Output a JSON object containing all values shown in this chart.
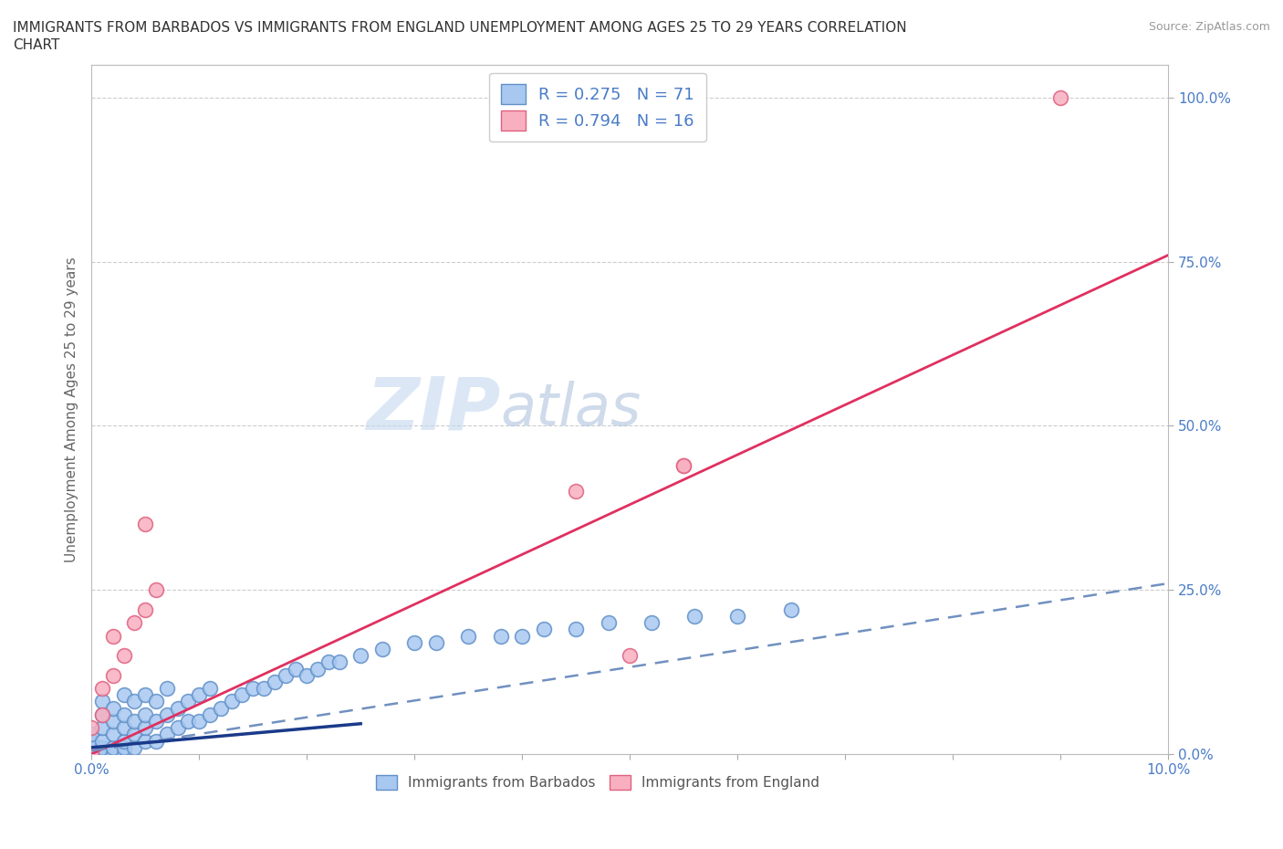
{
  "title_line1": "IMMIGRANTS FROM BARBADOS VS IMMIGRANTS FROM ENGLAND UNEMPLOYMENT AMONG AGES 25 TO 29 YEARS CORRELATION",
  "title_line2": "CHART",
  "source_text": "Source: ZipAtlas.com",
  "ylabel": "Unemployment Among Ages 25 to 29 years",
  "x_min": 0.0,
  "x_max": 0.1,
  "y_min": 0.0,
  "y_max": 1.05,
  "y_ticks": [
    0.0,
    0.25,
    0.5,
    0.75,
    1.0
  ],
  "y_tick_labels": [
    "0.0%",
    "25.0%",
    "50.0%",
    "75.0%",
    "100.0%"
  ],
  "x_tick_labels_first": "0.0%",
  "x_tick_labels_last": "10.0%",
  "barbados_color": "#a8c8f0",
  "barbados_edge_color": "#6090c8",
  "england_color": "#f8b0c0",
  "england_edge_color": "#e06080",
  "trend_barbados_solid_color": "#1a3a8a",
  "trend_barbados_dashed_color": "#7090c0",
  "trend_england_color": "#e03060",
  "R_barbados": 0.275,
  "N_barbados": 71,
  "R_england": 0.794,
  "N_england": 16,
  "legend_barbados": "Immigrants from Barbados",
  "legend_england": "Immigrants from England",
  "watermark_ZIP": "ZIP",
  "watermark_atlas": "atlas",
  "grid_color": "#c8c8c8",
  "background_color": "#ffffff",
  "tick_color": "#4a7cc7",
  "label_color": "#666666",
  "barbados_x": [
    0.0,
    0.0,
    0.0,
    0.0,
    0.0,
    0.001,
    0.001,
    0.001,
    0.001,
    0.001,
    0.001,
    0.001,
    0.002,
    0.002,
    0.002,
    0.002,
    0.002,
    0.003,
    0.003,
    0.003,
    0.003,
    0.003,
    0.003,
    0.004,
    0.004,
    0.004,
    0.004,
    0.005,
    0.005,
    0.005,
    0.005,
    0.006,
    0.006,
    0.006,
    0.007,
    0.007,
    0.007,
    0.008,
    0.008,
    0.009,
    0.009,
    0.01,
    0.01,
    0.011,
    0.011,
    0.012,
    0.013,
    0.014,
    0.015,
    0.016,
    0.017,
    0.018,
    0.019,
    0.02,
    0.021,
    0.022,
    0.023,
    0.025,
    0.027,
    0.03,
    0.032,
    0.035,
    0.038,
    0.04,
    0.042,
    0.045,
    0.048,
    0.052,
    0.056,
    0.06,
    0.065
  ],
  "barbados_y": [
    0.0,
    0.0,
    0.01,
    0.02,
    0.03,
    0.0,
    0.0,
    0.01,
    0.02,
    0.04,
    0.06,
    0.08,
    0.0,
    0.01,
    0.03,
    0.05,
    0.07,
    0.0,
    0.01,
    0.02,
    0.04,
    0.06,
    0.09,
    0.01,
    0.03,
    0.05,
    0.08,
    0.02,
    0.04,
    0.06,
    0.09,
    0.02,
    0.05,
    0.08,
    0.03,
    0.06,
    0.1,
    0.04,
    0.07,
    0.05,
    0.08,
    0.05,
    0.09,
    0.06,
    0.1,
    0.07,
    0.08,
    0.09,
    0.1,
    0.1,
    0.11,
    0.12,
    0.13,
    0.12,
    0.13,
    0.14,
    0.14,
    0.15,
    0.16,
    0.17,
    0.17,
    0.18,
    0.18,
    0.18,
    0.19,
    0.19,
    0.2,
    0.2,
    0.21,
    0.21,
    0.22
  ],
  "england_x": [
    0.0,
    0.0,
    0.001,
    0.001,
    0.002,
    0.002,
    0.003,
    0.004,
    0.005,
    0.005,
    0.006,
    0.045,
    0.05,
    0.055,
    0.055,
    0.09
  ],
  "england_y": [
    0.0,
    0.04,
    0.06,
    0.1,
    0.12,
    0.18,
    0.15,
    0.2,
    0.22,
    0.35,
    0.25,
    0.4,
    0.15,
    0.44,
    0.44,
    1.0
  ],
  "trend_barbados_x0": 0.0,
  "trend_barbados_x1": 0.1,
  "trend_barbados_y0": 0.01,
  "trend_barbados_y1": 0.155,
  "trend_england_x0": 0.0,
  "trend_england_x1": 0.1,
  "trend_england_y0": 0.0,
  "trend_england_y1": 0.76,
  "trend_dashed_x0": 0.0,
  "trend_dashed_x1": 0.1,
  "trend_dashed_y0": 0.005,
  "trend_dashed_y1": 0.26
}
